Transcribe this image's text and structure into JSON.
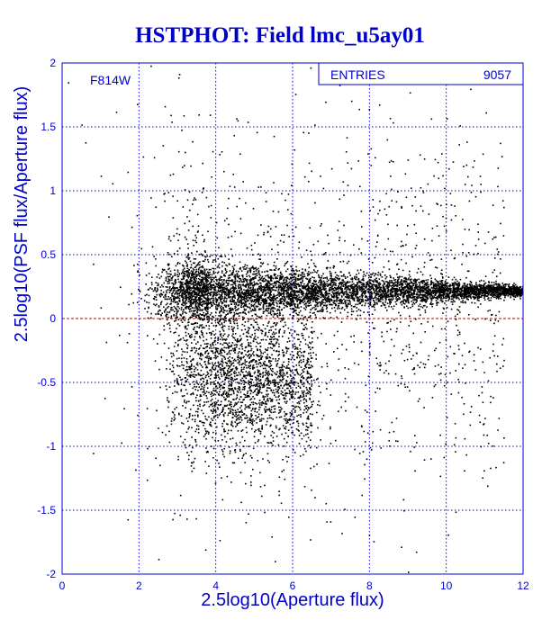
{
  "chart_data": {
    "type": "scatter",
    "title": "HSTPHOT: Field lmc_u5ay01",
    "xlabel": "2.5log10(Aperture flux)",
    "ylabel": "2.5log10(PSF flux/Aperture flux)",
    "xlim": [
      0,
      12
    ],
    "ylim": [
      -2,
      2
    ],
    "x_ticks": [
      "0",
      "2",
      "4",
      "6",
      "8",
      "10",
      "12"
    ],
    "y_ticks": [
      "-2",
      "-1.5",
      "-1",
      "-0.5",
      "0",
      "0.5",
      "1",
      "1.5",
      "2"
    ],
    "grid": true,
    "annotation": "F814W",
    "stats": {
      "label": "ENTRIES",
      "value": "9057"
    },
    "reference_line": {
      "y": 0,
      "color": "#cc0000",
      "style": "dashed"
    },
    "marker_color": "#000000",
    "accent_color": "#0000cc",
    "series": [
      {
        "outliers": [
          [
            0.15,
            1.85
          ],
          [
            0.6,
            1.38
          ],
          [
            1.0,
            1.12
          ],
          [
            1.3,
            1.06
          ],
          [
            1.4,
            1.62
          ],
          [
            1.7,
            1.15
          ],
          [
            1.8,
            0.72
          ],
          [
            2.1,
            1.27
          ],
          [
            2.3,
            0.95
          ],
          [
            5.5,
            1.43
          ],
          [
            7.4,
            1.42
          ],
          [
            0.8,
            0.43
          ],
          [
            1.1,
            -0.62
          ],
          [
            1.6,
            -0.7
          ],
          [
            1.9,
            -1.18
          ],
          [
            2.2,
            -1.26
          ],
          [
            2.5,
            -1.88
          ],
          [
            3.8,
            -1.15
          ],
          [
            4.9,
            -1.3
          ],
          [
            6.3,
            -1.31
          ],
          [
            8.1,
            -1.74
          ],
          [
            9.0,
            -1.98
          ],
          [
            1.7,
            -1.57
          ],
          [
            0.8,
            -1.05
          ],
          [
            2.3,
            1.98
          ],
          [
            0.5,
            1.52
          ],
          [
            1.2,
            0.8
          ],
          [
            1.5,
            0.25
          ]
        ],
        "clusters": [
          {
            "xmin": 1.5,
            "xmax": 12,
            "y": 0.22,
            "spread_start": 0.14,
            "spread_end": 0.02,
            "x_peak": 3.8,
            "count": 5600
          },
          {
            "xmin": 2.8,
            "xmax": 6.5,
            "y": -0.45,
            "spread_start": 0.28,
            "spread_end": 0.28,
            "x_peak": 4.0,
            "count": 2000
          },
          {
            "xmin": 0.5,
            "xmax": 11.5,
            "y": 0.0,
            "spread_start": 0.7,
            "spread_end": 0.7,
            "x_peak": 3.5,
            "count": 1400
          }
        ]
      }
    ]
  }
}
